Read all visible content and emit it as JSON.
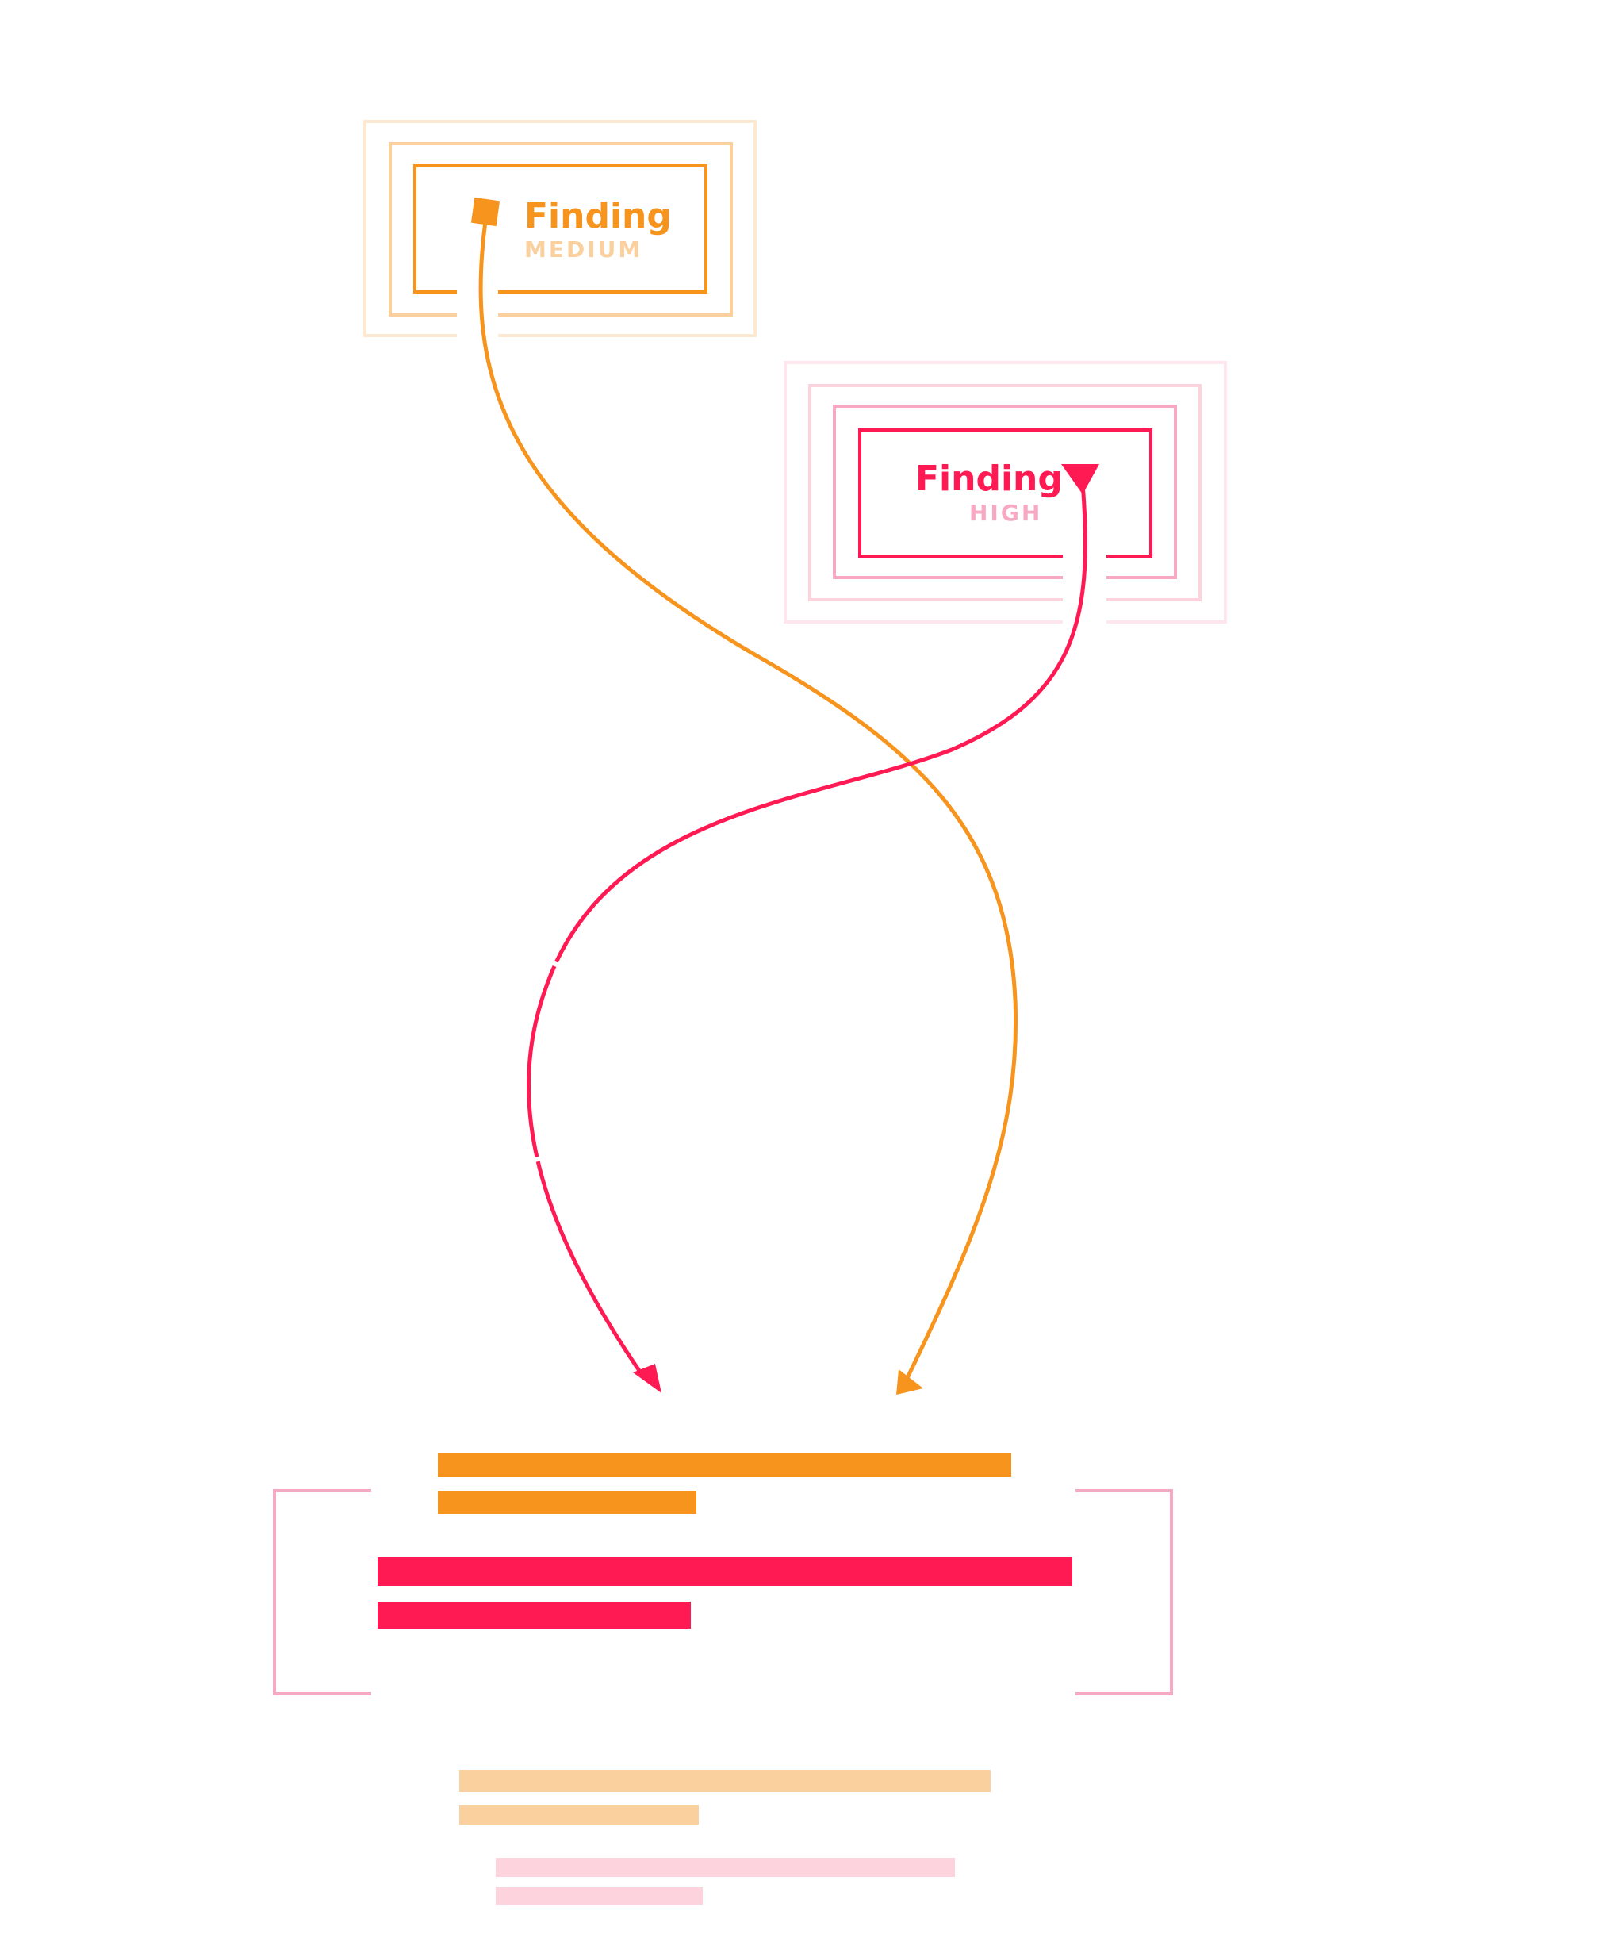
{
  "colors": {
    "medium": "#F7941D",
    "medium_faint": "#FAD09E",
    "high": "#FF1A54",
    "high_faint": "#F7A8C2",
    "high_ghost": "#FDD3DE"
  },
  "findings": [
    {
      "title": "Finding",
      "severity": "MEDIUM"
    },
    {
      "title": "Finding",
      "severity": "HIGH"
    }
  ],
  "connectors": [
    {
      "from": "finding-medium",
      "to": "target-medium-block",
      "start_marker": "square",
      "end_marker": "arrow"
    },
    {
      "from": "finding-high",
      "to": "target-high-block",
      "start_marker": "arrow",
      "end_marker": "arrow"
    }
  ]
}
